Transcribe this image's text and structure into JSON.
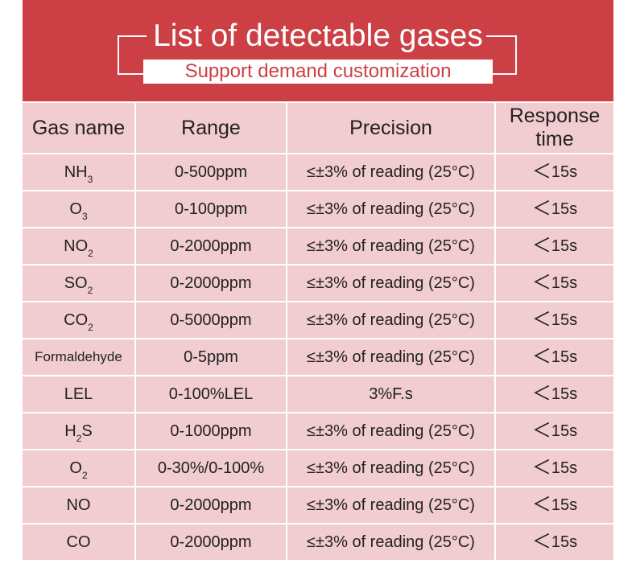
{
  "header": {
    "title": "List of detectable gases",
    "subtitle": "Support demand customization"
  },
  "table": {
    "columns": [
      "Gas name",
      "Range",
      "Precision",
      "Response time"
    ],
    "rows": [
      {
        "gas": "NH",
        "sub": "3",
        "range": "0-500ppm",
        "precision": "≤±3% of reading (25°C)",
        "response": "15s"
      },
      {
        "gas": "O",
        "sub": "3",
        "range": "0-100ppm",
        "precision": "≤±3% of reading (25°C)",
        "response": "15s"
      },
      {
        "gas": "NO",
        "sub": "2",
        "range": "0-2000ppm",
        "precision": "≤±3% of reading (25°C)",
        "response": "15s"
      },
      {
        "gas": "SO",
        "sub": "2",
        "range": "0-2000ppm",
        "precision": "≤±3% of reading (25°C)",
        "response": "15s"
      },
      {
        "gas": "CO",
        "sub": "2",
        "range": "0-5000ppm",
        "precision": "≤±3% of reading (25°C)",
        "response": "15s"
      },
      {
        "gas": "Formaldehyde",
        "range": "0-5ppm",
        "precision": "≤±3% of reading (25°C)",
        "response": "15s"
      },
      {
        "gas": "LEL",
        "range": "0-100%LEL",
        "precision": "3%F.s",
        "response": "15s"
      },
      {
        "gas_pre": "H",
        "sub": "2",
        "gas_post": "S",
        "range": "0-1000ppm",
        "precision": "≤±3% of reading (25°C)",
        "response": "15s"
      },
      {
        "gas": "O",
        "sub": "2",
        "range": "0-30%/0-100%",
        "precision": "≤±3% of reading (25°C)",
        "response": "15s"
      },
      {
        "gas": "NO",
        "range": "0-2000ppm",
        "precision": "≤±3% of reading (25°C)",
        "response": "15s"
      },
      {
        "gas": "CO",
        "range": "0-2000ppm",
        "precision": "≤±3% of reading (25°C)",
        "response": "15s"
      }
    ],
    "less_than_symbol": "＜"
  },
  "colors": {
    "banner": "#cc3f44",
    "cell": "#f1ccd0",
    "text": "#222222"
  }
}
